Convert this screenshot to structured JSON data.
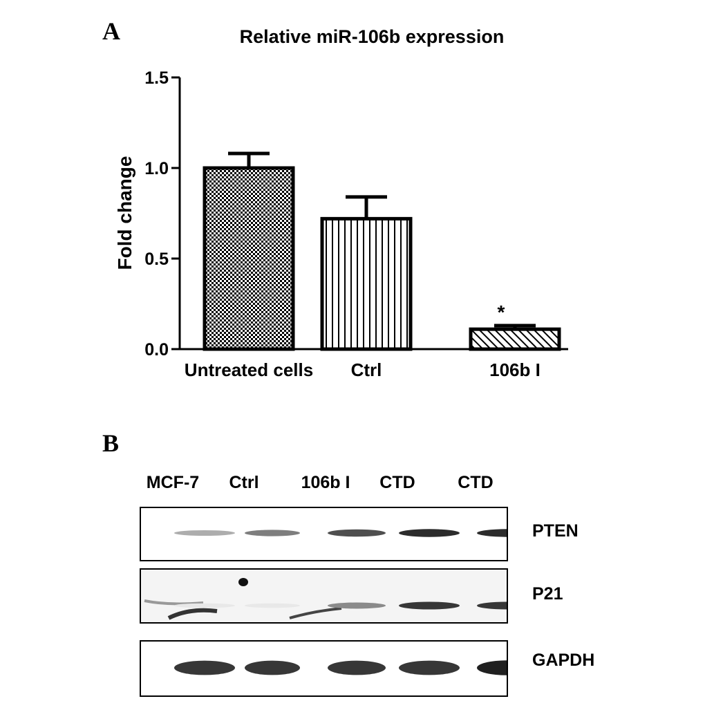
{
  "panel_a_label": "A",
  "panel_b_label": "B",
  "chart_data": {
    "type": "bar",
    "title": "Relative miR-106b expression",
    "xlabel": "",
    "ylabel": "Fold change",
    "categories": [
      "Untreated cells",
      "Ctrl",
      "106b I"
    ],
    "values": [
      1.0,
      0.72,
      0.11
    ],
    "error": [
      0.08,
      0.12,
      0.02
    ],
    "significance": [
      "",
      "",
      "*"
    ],
    "ylim": [
      0,
      1.5
    ],
    "yticks": [
      0.0,
      0.5,
      1.0,
      1.5
    ],
    "ytick_labels": [
      "0.0",
      "0.5",
      "1.0",
      "1.5"
    ],
    "patterns": [
      "checker",
      "vertical",
      "diagonal"
    ],
    "grid": false,
    "legend": "none"
  },
  "western_blot": {
    "lanes": [
      "MCF-7",
      "Ctrl",
      "106b I",
      "CTD",
      "CTD"
    ],
    "proteins": [
      "PTEN",
      "P21",
      "GAPDH"
    ],
    "band_intensity": {
      "PTEN": [
        0.35,
        0.55,
        0.75,
        0.9,
        0.9
      ],
      "P21": [
        0.1,
        0.1,
        0.5,
        0.85,
        0.85
      ],
      "GAPDH": [
        0.85,
        0.85,
        0.85,
        0.85,
        0.95
      ]
    }
  }
}
